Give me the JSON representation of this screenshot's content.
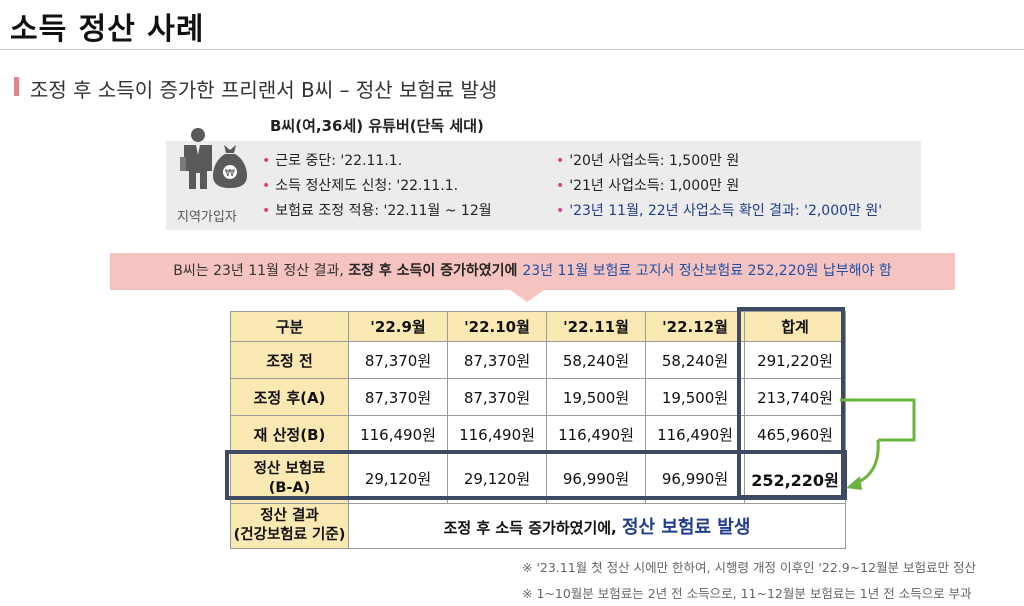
{
  "page": {
    "title": "소득 정산 사례",
    "section_title": "조정 후 소득이 증가한 프리랜서 B씨 – 정산 보험료 발생"
  },
  "profile": {
    "heading": "B씨(여,36세) 유튜버(단독 세대)",
    "region_label": "지역가입자",
    "left_items": [
      "근로 중단: '22.11.1.",
      "소득 정산제도 신청: '22.11.1.",
      "보험료 조정 적용: '22.11월 ~ 12월"
    ],
    "right_items": [
      "'20년 사업소득: 1,500만 원",
      "'21년 사업소득: 1,000만 원",
      "'23년 11월, 22년 사업소득 확인 결과: '2,000만 원'"
    ],
    "icons": {
      "person": "businessperson-icon",
      "bag": "money-bag-icon"
    },
    "colors": {
      "bullet": "#d9457a",
      "highlight": "#1f3d8a"
    }
  },
  "notice": {
    "part1": "B씨는 23년 11월 정산 결과, ",
    "part2": "조정 후 소득이 증가하였기에 ",
    "part3": "23년 11월 보험료 고지서 정산보험료 252,220원 납부해야 함"
  },
  "table": {
    "headers": [
      "구분",
      "'22.9월",
      "'22.10월",
      "'22.11월",
      "'22.12월",
      "합계"
    ],
    "rows": [
      {
        "label": "조정 전",
        "values": [
          "87,370원",
          "87,370원",
          "58,240원",
          "58,240원"
        ],
        "total": "291,220원"
      },
      {
        "label": "조정 후(A)",
        "values": [
          "87,370원",
          "87,370원",
          "19,500원",
          "19,500원"
        ],
        "total": "213,740원"
      },
      {
        "label": "재 산정(B)",
        "values": [
          "116,490원",
          "116,490원",
          "116,490원",
          "116,490원"
        ],
        "total": "465,960원"
      },
      {
        "label_line1": "정산 보험료",
        "label_line2": "(B-A)",
        "values": [
          "29,120원",
          "29,120원",
          "96,990원",
          "96,990원"
        ],
        "total": "252,220원"
      }
    ],
    "result": {
      "label_line1": "정산 결과",
      "label_line2": "(건강보험료 기준)",
      "text": "조정 후 소득 증가하였기에, ",
      "emphasis": "정산 보험료 발생"
    },
    "colors": {
      "header_bg": "#fbe9b3",
      "frame": "#3e4a63",
      "arrow": "#6db33f"
    }
  },
  "footnotes": [
    "※ '23.11월 첫 정산 시에만 한하여, 시행령 개정 이후인 '22.9~12월분 보험료만 정산",
    "※ 1~10월분 보험료는 2년 전 소득으로, 11~12월분 보험료는 1년 전 소득으로 부과"
  ]
}
